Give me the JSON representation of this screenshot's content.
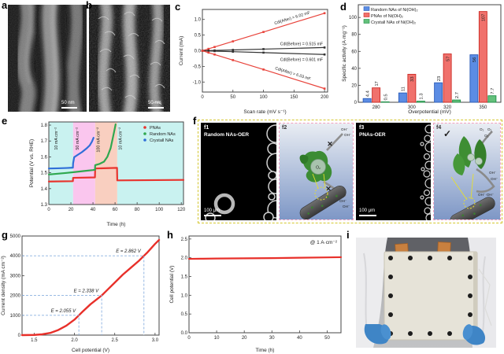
{
  "panels": {
    "a": {
      "label": "a",
      "scale_bar": "50 nm"
    },
    "b": {
      "label": "b",
      "scale_bar": "50 nm"
    },
    "c": {
      "label": "c"
    },
    "d": {
      "label": "d"
    },
    "e": {
      "label": "e"
    },
    "f": {
      "label": "f",
      "f1": {
        "label": "f1",
        "title": "Random NAs-OER",
        "scale_bar": "100 μm"
      },
      "f2": {
        "label": "f2",
        "cross1": "✕",
        "cross2": "✕",
        "oh_top1": "OH⁻",
        "oh_top2": "OH⁻",
        "o2": "O₂",
        "oh_bot1": "OH⁻",
        "oh_bot2": "OH⁻"
      },
      "f3": {
        "label": "f3",
        "title": "PNAs-OER",
        "scale_bar": "100 μm"
      },
      "f4": {
        "label": "f4",
        "check": "✓",
        "o2_labels": [
          "O₂",
          "O₂",
          "O₂"
        ],
        "oh_labels": [
          "OH⁻",
          "OH⁻",
          "OH⁻·OH⁻"
        ]
      }
    },
    "g": {
      "label": "g"
    },
    "h": {
      "label": "h"
    },
    "i": {
      "label": "i"
    }
  },
  "chart_data": [
    {
      "id": "c",
      "type": "scatter",
      "xlabel": "Scan rate (mV s⁻¹)",
      "ylabel": "Current (mA)",
      "xlim": [
        0,
        205
      ],
      "ylim": [
        -1.32,
        1.32
      ],
      "xticks": [
        "0",
        "50",
        "100",
        "150",
        "200"
      ],
      "yticks": [
        "-1.0",
        "-0.5",
        "0.0",
        "0.5",
        "1.0"
      ],
      "series": [
        {
          "name": "after-anodic",
          "color": "#e8433b",
          "marker": true,
          "label": "Cdl(After) = 6.02 mF",
          "label_rotate": true,
          "label_frac": 0.72,
          "label_dy": -5,
          "x": [
            0,
            10,
            20,
            50,
            100,
            200
          ],
          "y": [
            0,
            0.06,
            0.12,
            0.3,
            0.6,
            1.2
          ]
        },
        {
          "name": "before-anodic",
          "color": "#333333",
          "marker": true,
          "label": "Cdl(Before) = 0.515 mF",
          "label_dy": -3,
          "x": [
            0,
            10,
            20,
            50,
            100,
            200
          ],
          "y": [
            0,
            0.005,
            0.01,
            0.026,
            0.052,
            0.103
          ]
        },
        {
          "name": "before-cathodic",
          "color": "#333333",
          "marker": true,
          "label": "Cdl(Before) = 0.601 mF",
          "label_dy": 8,
          "x": [
            0,
            10,
            20,
            50,
            100,
            200
          ],
          "y": [
            0,
            -0.006,
            -0.012,
            -0.03,
            -0.06,
            -0.12
          ]
        },
        {
          "name": "after-cathodic",
          "color": "#e8433b",
          "marker": true,
          "label": "Cdl(After) = 6.03 mF",
          "label_rotate": true,
          "label_frac": 0.72,
          "label_dy": -5,
          "x": [
            0,
            10,
            20,
            50,
            100,
            200
          ],
          "y": [
            0,
            -0.06,
            -0.12,
            -0.3,
            -0.6,
            -1.21
          ]
        }
      ]
    },
    {
      "id": "d",
      "type": "bar",
      "categories": [
        "280",
        "300",
        "320",
        "350"
      ],
      "xlabel": "Overpotential (mV)",
      "ylabel": "Specific activity (A·mg⁻¹)",
      "ylim": [
        0,
        115
      ],
      "yticks": [
        "0",
        "20",
        "40",
        "60",
        "80",
        "100"
      ],
      "series": [
        {
          "name": "Random NAs of Ni(OH)₂",
          "color": "#5b8ce4",
          "edge": "#2b5cb8",
          "values": [
            4.4,
            11,
            23,
            56
          ]
        },
        {
          "name": "PNAs of Ni(OH)₂",
          "color": "#f0716c",
          "edge": "#cc2a24",
          "values": [
            17,
            33,
            57,
            107
          ]
        },
        {
          "name": "Crystall NAs of Ni(OH)₂",
          "color": "#63c07b",
          "edge": "#1d8f47",
          "values": [
            0.5,
            1.3,
            2.7,
            7.7
          ]
        }
      ]
    },
    {
      "id": "e",
      "type": "line",
      "xlabel": "Time (h)",
      "ylabel": "Potential (V vs. RHE)",
      "xlim": [
        0,
        122
      ],
      "ylim": [
        1.3,
        1.82
      ],
      "xticks": [
        "0",
        "20",
        "40",
        "60",
        "80",
        "100",
        "120"
      ],
      "yticks": [
        "1.3",
        "1.4",
        "1.5",
        "1.6",
        "1.7",
        "1.8"
      ],
      "regions": [
        {
          "from": 0,
          "to": 22,
          "color": "#c9f2f0",
          "label": "10 mA cm⁻²",
          "label_x": 8
        },
        {
          "from": 22,
          "to": 42,
          "color": "#fac6ee",
          "label": "50 mA cm⁻²",
          "label_x": 27
        },
        {
          "from": 42,
          "to": 62,
          "color": "#f9cfc0",
          "label": "100 mA cm⁻²",
          "label_x": 46
        },
        {
          "from": 62,
          "to": 122,
          "color": "#c9f2f0",
          "label": "10 mA cm⁻²",
          "label_x": 66
        }
      ],
      "series": [
        {
          "name": "PNAs",
          "color": "#e8342e",
          "width": 2.2,
          "x": [
            0,
            21.8,
            22,
            41.8,
            42,
            61.8,
            62,
            122
          ],
          "y": [
            1.445,
            1.447,
            1.468,
            1.471,
            1.527,
            1.531,
            1.452,
            1.455
          ]
        },
        {
          "name": "Random NAs",
          "color": "#2fa84f",
          "width": 2.2,
          "x": [
            0,
            8,
            16,
            24,
            32,
            40,
            41.8,
            42,
            46,
            50,
            53,
            56,
            58,
            59.5,
            60.5
          ],
          "y": [
            1.489,
            1.494,
            1.499,
            1.505,
            1.511,
            1.517,
            1.519,
            1.548,
            1.556,
            1.57,
            1.6,
            1.655,
            1.72,
            1.77,
            1.805
          ]
        },
        {
          "name": "Crystall NAs",
          "color": "#2f6fd8",
          "width": 2.2,
          "x": [
            0,
            8,
            16,
            21.8,
            22,
            23,
            26,
            30,
            34,
            37,
            39,
            40.5
          ],
          "y": [
            1.527,
            1.528,
            1.53,
            1.532,
            1.56,
            1.598,
            1.612,
            1.63,
            1.652,
            1.672,
            1.695,
            1.72
          ]
        }
      ]
    },
    {
      "id": "g",
      "type": "line",
      "xlabel": "Cell potential (V)",
      "ylabel": "Current density (mA cm⁻²)",
      "xlim": [
        1.35,
        3.05
      ],
      "ylim": [
        0,
        5000
      ],
      "xticks": [
        "1.5",
        "2.0",
        "2.5",
        "3.0"
      ],
      "yticks": [
        "0",
        "1000",
        "2000",
        "3000",
        "4000",
        "5000"
      ],
      "series": [
        {
          "name": "polarization",
          "color": "#e8302a",
          "width": 2.4,
          "x": [
            1.35,
            1.5,
            1.6,
            1.7,
            1.8,
            1.9,
            2.0,
            2.055,
            2.1,
            2.2,
            2.338,
            2.4,
            2.5,
            2.6,
            2.7,
            2.8,
            2.862,
            2.9,
            3.0,
            3.05
          ],
          "y": [
            0,
            10,
            40,
            110,
            260,
            480,
            780,
            1000,
            1180,
            1560,
            2000,
            2250,
            2650,
            3050,
            3400,
            3750,
            4000,
            4150,
            4600,
            4800
          ]
        }
      ],
      "annotations": [
        {
          "text": "E = 2.055 V",
          "x": 2.055,
          "y": 1000
        },
        {
          "text": "E = 2.338 V",
          "x": 2.338,
          "y": 2000
        },
        {
          "text": "E = 2.862 V",
          "x": 2.862,
          "y": 4000
        }
      ]
    },
    {
      "id": "h",
      "type": "line",
      "xlabel": "Time (h)",
      "ylabel": "Cell potential (V)",
      "xlim": [
        0,
        55
      ],
      "ylim": [
        0,
        2.58
      ],
      "xticks": [
        "0",
        "10",
        "20",
        "30",
        "40",
        "50"
      ],
      "yticks": [
        "0.0",
        "0.5",
        "1.0",
        "1.5",
        "2.0",
        "2.5"
      ],
      "annotation": "@ 1 A·cm⁻²",
      "series": [
        {
          "name": "stability",
          "color": "#e8302a",
          "width": 2.2,
          "x": [
            0,
            5,
            10,
            20,
            30,
            40,
            50,
            55
          ],
          "y": [
            1.97,
            1.975,
            1.98,
            1.985,
            1.99,
            2.0,
            2.01,
            2.015
          ]
        }
      ]
    }
  ]
}
